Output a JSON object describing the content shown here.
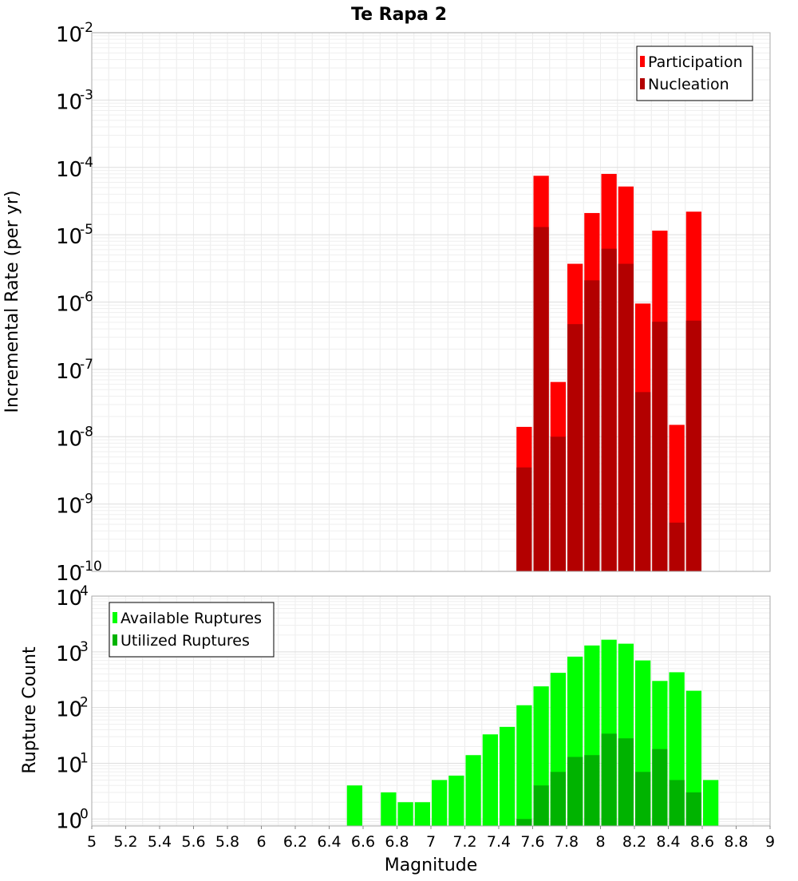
{
  "chart_data": [
    {
      "type": "bar",
      "title": "Te Rapa 2",
      "xlabel": "",
      "ylabel": "Incremental Rate (per yr)",
      "yscale": "log",
      "xlim": [
        5,
        9
      ],
      "ylim": [
        1e-10,
        0.01
      ],
      "y_tick_labels": [
        {
          "base": "10",
          "exp": "-10"
        },
        {
          "base": "10",
          "exp": "-9"
        },
        {
          "base": "10",
          "exp": "-8"
        },
        {
          "base": "10",
          "exp": "-7"
        },
        {
          "base": "10",
          "exp": "-6"
        },
        {
          "base": "10",
          "exp": "-5"
        },
        {
          "base": "10",
          "exp": "-4"
        },
        {
          "base": "10",
          "exp": "-3"
        },
        {
          "base": "10",
          "exp": "-2"
        }
      ],
      "grid": true,
      "legend_position": "top-right",
      "bar_width": 0.1,
      "x": [
        7.55,
        7.65,
        7.75,
        7.85,
        7.95,
        8.05,
        8.15,
        8.25,
        8.35,
        8.45,
        8.55
      ],
      "series": [
        {
          "name": "Participation",
          "color": "#ff0000",
          "values": [
            1.4e-08,
            7.5e-05,
            6.5e-08,
            3.7e-06,
            2.1e-05,
            8e-05,
            5.2e-05,
            9.5e-07,
            1.15e-05,
            1.5e-08,
            2.2e-05
          ]
        },
        {
          "name": "Nucleation",
          "color": "#b30000",
          "values": [
            3.5e-09,
            1.3e-05,
            1e-08,
            4.7e-07,
            2.1e-06,
            6.2e-06,
            3.7e-06,
            4.6e-08,
            5.1e-07,
            5.3e-10,
            5.3e-07
          ]
        }
      ]
    },
    {
      "type": "bar",
      "title": "",
      "xlabel": "Magnitude",
      "ylabel": "Rupture Count",
      "yscale": "log",
      "xlim": [
        5,
        9
      ],
      "ylim": [
        0.75,
        10000
      ],
      "x_tick_labels": [
        "5",
        "5.2",
        "5.4",
        "5.6",
        "5.8",
        "6",
        "6.2",
        "6.4",
        "6.6",
        "6.8",
        "7",
        "7.2",
        "7.4",
        "7.6",
        "7.8",
        "8",
        "8.2",
        "8.4",
        "8.6",
        "8.8",
        "9"
      ],
      "y_tick_labels": [
        {
          "base": "10",
          "exp": "0"
        },
        {
          "base": "10",
          "exp": "1"
        },
        {
          "base": "10",
          "exp": "2"
        },
        {
          "base": "10",
          "exp": "3"
        },
        {
          "base": "10",
          "exp": "4"
        }
      ],
      "grid": true,
      "legend_position": "top-left",
      "bar_width": 0.1,
      "series": [
        {
          "name": "Available Ruptures",
          "color": "#00ff00",
          "x": [
            6.55,
            6.75,
            6.85,
            6.95,
            7.05,
            7.15,
            7.25,
            7.35,
            7.45,
            7.55,
            7.65,
            7.75,
            7.85,
            7.95,
            8.05,
            8.15,
            8.25,
            8.35,
            8.45,
            8.55,
            8.65
          ],
          "values": [
            4,
            3,
            2,
            2,
            5,
            6,
            14,
            33,
            45,
            110,
            240,
            420,
            820,
            1300,
            1650,
            1400,
            700,
            300,
            430,
            200,
            5
          ]
        },
        {
          "name": "Utilized Ruptures",
          "color": "#00b300",
          "x": [
            7.55,
            7.65,
            7.75,
            7.85,
            7.95,
            8.05,
            8.15,
            8.25,
            8.35,
            8.45,
            8.55
          ],
          "values": [
            1,
            4,
            7,
            13,
            14,
            34,
            28,
            7,
            18,
            5,
            3
          ]
        }
      ]
    }
  ]
}
